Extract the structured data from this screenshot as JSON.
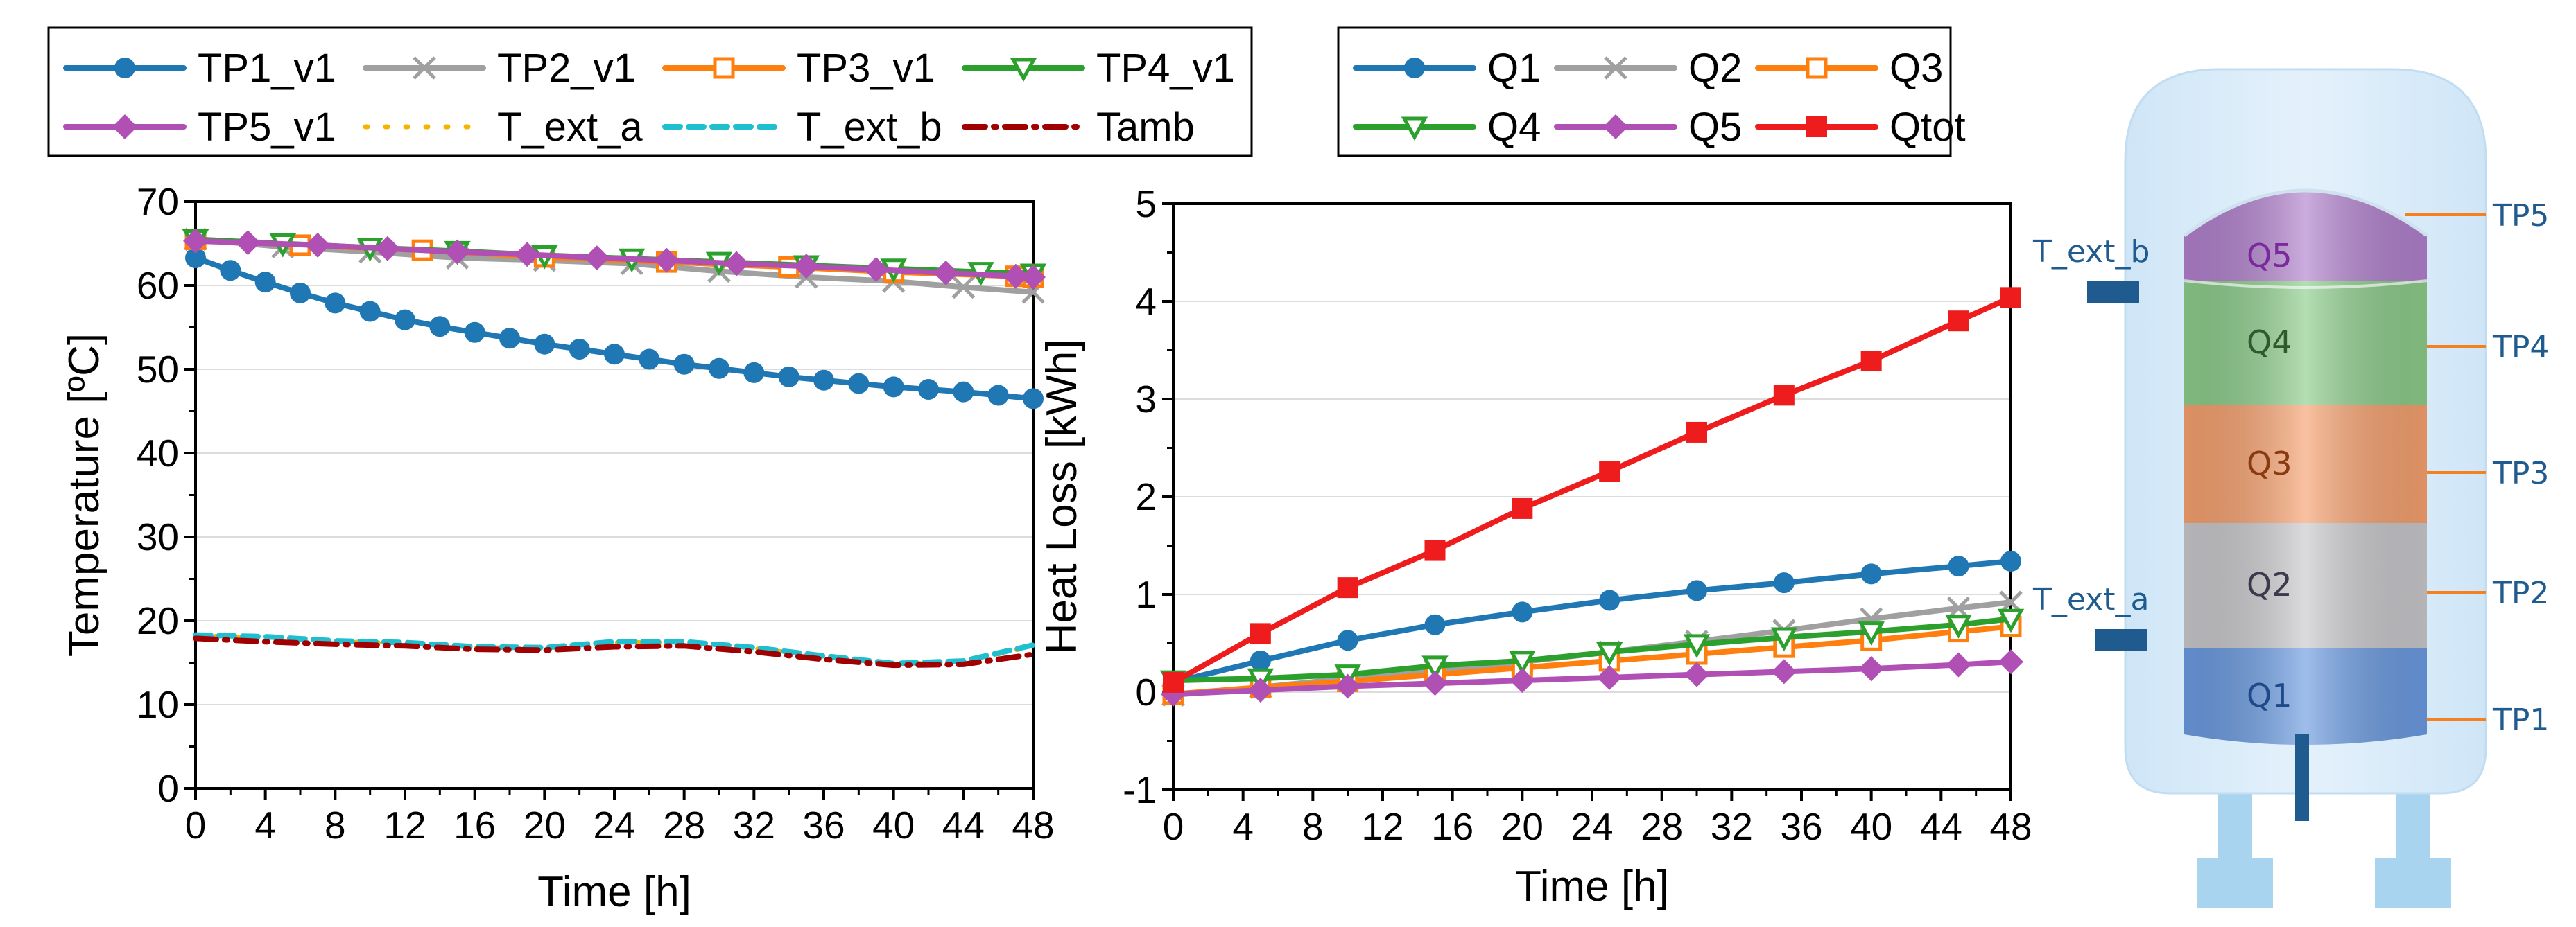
{
  "chart_data": [
    {
      "type": "line",
      "xlabel": "Time [h]",
      "ylabel": "Temperature [ºC]",
      "xlim": [
        0,
        48
      ],
      "ylim": [
        0,
        70
      ],
      "xticks": [
        0,
        4,
        8,
        12,
        16,
        20,
        24,
        28,
        32,
        36,
        40,
        44,
        48
      ],
      "yticks": [
        0,
        10,
        20,
        30,
        40,
        50,
        60,
        70
      ],
      "grid": "horizontal",
      "legend_position": "top",
      "series": [
        {
          "name": "TP1_v1",
          "color": "#1f77b4",
          "style": "solid",
          "marker": "circle",
          "x": [
            0,
            2,
            4,
            6,
            8,
            10,
            12,
            14,
            16,
            18,
            20,
            22,
            24,
            26,
            28,
            30,
            32,
            34,
            36,
            38,
            40,
            42,
            44,
            46,
            48
          ],
          "y": [
            63.3,
            61.8,
            60.4,
            59.1,
            57.9,
            56.9,
            55.9,
            55.1,
            54.4,
            53.7,
            53.0,
            52.4,
            51.8,
            51.2,
            50.6,
            50.1,
            49.6,
            49.1,
            48.7,
            48.3,
            47.9,
            47.6,
            47.3,
            46.9,
            46.5
          ]
        },
        {
          "name": "TP2_v1",
          "color": "#a0a0a0",
          "style": "solid",
          "marker": "x",
          "x": [
            0,
            5,
            10,
            15,
            20,
            25,
            30,
            35,
            40,
            44,
            48
          ],
          "y": [
            65.5,
            64.6,
            64.0,
            63.3,
            63.0,
            62.6,
            61.7,
            61.0,
            60.5,
            59.8,
            59.2
          ]
        },
        {
          "name": "TP3_v1",
          "color": "#ff7f0e",
          "style": "solid",
          "marker": "square-open",
          "x": [
            0,
            6,
            13,
            20,
            27,
            34,
            40,
            47,
            48
          ],
          "y": [
            65.5,
            64.8,
            64.2,
            63.4,
            62.8,
            62.2,
            61.6,
            61.1,
            61.0
          ]
        },
        {
          "name": "TP4_v1",
          "color": "#2ca02c",
          "style": "solid",
          "marker": "triangle-down-open",
          "x": [
            0,
            5,
            10,
            15,
            20,
            25,
            30,
            35,
            40,
            45,
            48
          ],
          "y": [
            65.5,
            65.0,
            64.5,
            64.1,
            63.6,
            63.2,
            62.8,
            62.4,
            62.0,
            61.6,
            61.4
          ]
        },
        {
          "name": "TP5_v1",
          "color": "#b04fb4",
          "style": "solid",
          "marker": "diamond",
          "x": [
            0,
            3,
            7,
            11,
            15,
            19,
            23,
            27,
            31,
            35,
            39,
            43,
            47,
            48
          ],
          "y": [
            65.3,
            65.1,
            64.8,
            64.4,
            64.0,
            63.7,
            63.3,
            63.0,
            62.6,
            62.3,
            61.9,
            61.5,
            61.1,
            61.0
          ]
        },
        {
          "name": "T_ext_a",
          "color": "#f5b400",
          "style": "dotted",
          "marker": "none",
          "x": [
            0,
            4,
            8,
            12,
            16,
            20,
            24,
            28,
            32,
            36,
            40,
            44,
            48
          ],
          "y": [
            18.2,
            18.0,
            17.5,
            17.3,
            16.8,
            16.7,
            17.4,
            17.4,
            16.7,
            15.7,
            14.8,
            15.1,
            17.0
          ]
        },
        {
          "name": "T_ext_b",
          "color": "#1fbfcf",
          "style": "dashed",
          "marker": "none",
          "x": [
            0,
            4,
            8,
            12,
            16,
            20,
            24,
            28,
            32,
            36,
            40,
            44,
            48
          ],
          "y": [
            18.3,
            18.1,
            17.6,
            17.4,
            16.9,
            16.8,
            17.5,
            17.5,
            16.8,
            15.8,
            14.9,
            15.2,
            17.1
          ]
        },
        {
          "name": "Tamb",
          "color": "#a00000",
          "style": "dashdot",
          "marker": "none",
          "x": [
            0,
            4,
            8,
            12,
            16,
            20,
            24,
            28,
            32,
            36,
            40,
            44,
            48
          ],
          "y": [
            17.9,
            17.5,
            17.2,
            17.0,
            16.6,
            16.5,
            16.9,
            17.0,
            16.3,
            15.4,
            14.7,
            14.8,
            16.0
          ]
        }
      ]
    },
    {
      "type": "line",
      "xlabel": "Time [h]",
      "ylabel": "Heat Loss [kWh]",
      "xlim": [
        0,
        48
      ],
      "ylim": [
        -1,
        5
      ],
      "xticks": [
        0,
        4,
        8,
        12,
        16,
        20,
        24,
        28,
        32,
        36,
        40,
        44,
        48
      ],
      "yticks": [
        -1,
        0,
        1,
        2,
        3,
        4,
        5
      ],
      "grid": "horizontal",
      "legend_position": "top",
      "series": [
        {
          "name": "Q1",
          "color": "#1f77b4",
          "style": "solid",
          "marker": "circle",
          "x": [
            0,
            5,
            10,
            15,
            20,
            25,
            30,
            35,
            40,
            45,
            48
          ],
          "y": [
            0.1,
            0.32,
            0.53,
            0.69,
            0.82,
            0.94,
            1.04,
            1.12,
            1.21,
            1.29,
            1.34
          ]
        },
        {
          "name": "Q2",
          "color": "#a0a0a0",
          "style": "solid",
          "marker": "x",
          "x": [
            0,
            5,
            10,
            15,
            20,
            25,
            30,
            35,
            40,
            45,
            48
          ],
          "y": [
            -0.03,
            0.05,
            0.14,
            0.22,
            0.31,
            0.41,
            0.52,
            0.63,
            0.75,
            0.86,
            0.92
          ]
        },
        {
          "name": "Q3",
          "color": "#ff7f0e",
          "style": "solid",
          "marker": "square-open",
          "x": [
            0,
            5,
            10,
            15,
            20,
            25,
            30,
            35,
            40,
            45,
            48
          ],
          "y": [
            -0.02,
            0.05,
            0.11,
            0.18,
            0.25,
            0.32,
            0.39,
            0.46,
            0.53,
            0.62,
            0.67
          ]
        },
        {
          "name": "Q4",
          "color": "#2ca02c",
          "style": "solid",
          "marker": "triangle-down-open",
          "x": [
            0,
            5,
            10,
            15,
            20,
            25,
            30,
            35,
            40,
            45,
            48
          ],
          "y": [
            0.12,
            0.14,
            0.18,
            0.27,
            0.32,
            0.41,
            0.49,
            0.56,
            0.62,
            0.69,
            0.75
          ]
        },
        {
          "name": "Q5",
          "color": "#b04fb4",
          "style": "solid",
          "marker": "diamond",
          "x": [
            0,
            5,
            10,
            15,
            20,
            25,
            30,
            35,
            40,
            45,
            48
          ],
          "y": [
            -0.02,
            0.02,
            0.06,
            0.09,
            0.12,
            0.15,
            0.18,
            0.21,
            0.24,
            0.28,
            0.31
          ]
        },
        {
          "name": "Qtot",
          "color": "#ee1c1c",
          "style": "solid",
          "marker": "square",
          "x": [
            0,
            5,
            10,
            15,
            20,
            25,
            30,
            35,
            40,
            45,
            48
          ],
          "y": [
            0.1,
            0.6,
            1.07,
            1.45,
            1.88,
            2.26,
            2.66,
            3.04,
            3.39,
            3.8,
            4.04
          ]
        }
      ]
    }
  ],
  "tank_diagram": {
    "layers": [
      {
        "label": "Q5",
        "color": "#b080cc",
        "text_color": "#7a2a9a"
      },
      {
        "label": "Q4",
        "color": "#8ccc8a",
        "text_color": "#2e5a2e"
      },
      {
        "label": "Q3",
        "color": "#f5a06e",
        "text_color": "#8a3a10"
      },
      {
        "label": "Q2",
        "color": "#c8c8cc",
        "text_color": "#3a3a4a"
      },
      {
        "label": "Q1",
        "color": "#6a9ae0",
        "text_color": "#1f4a8a"
      }
    ],
    "probes": [
      "TP5",
      "TP4",
      "TP3",
      "TP2",
      "TP1"
    ],
    "sensors": [
      "T_ext_b",
      "T_ext_a"
    ],
    "shell_color": "#d6eaf8",
    "leg_color": "#a8d4f0",
    "pipe_color": "#1f5b8e"
  }
}
